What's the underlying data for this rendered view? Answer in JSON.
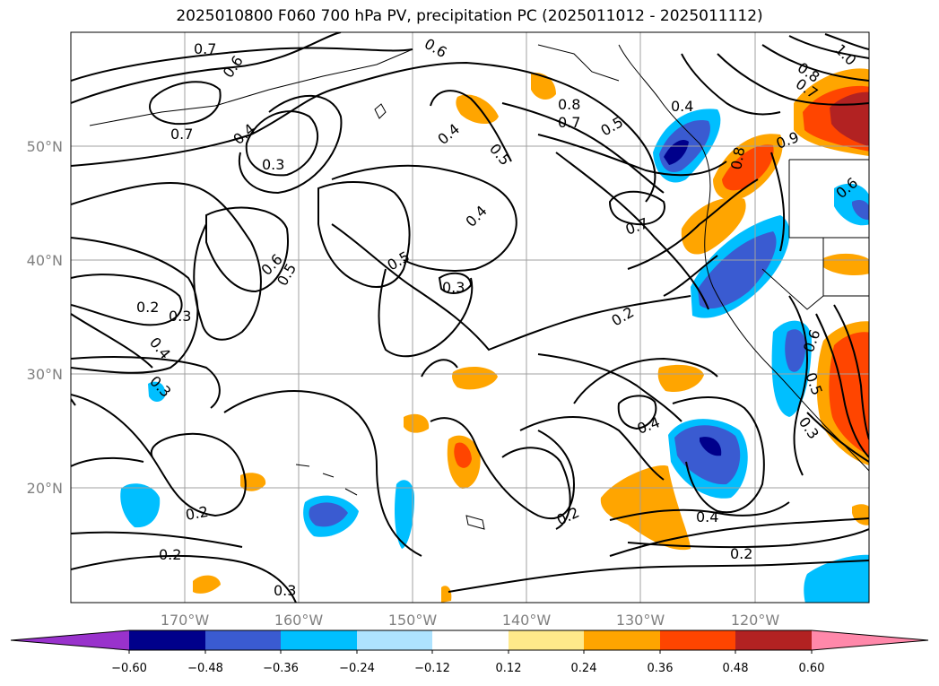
{
  "title": "2025010800 F060 700 hPa PV, precipitation PC (2025011012 - 2025011112)",
  "map": {
    "lon_labels": [
      "170°W",
      "160°W",
      "150°W",
      "140°W",
      "130°W",
      "120°W"
    ],
    "lat_labels": [
      "50°N",
      "40°N",
      "30°N",
      "20°N"
    ],
    "contour_labels": [
      "0.7",
      "0.6",
      "0.6",
      "0.8",
      "0.7",
      "0.5",
      "0.4",
      "0.8",
      "0.7",
      "1.0",
      "0.7",
      "0.4",
      "0.3",
      "0.4",
      "0.5",
      "0.8",
      "0.9",
      "0.6",
      "0.4",
      "0.7",
      "0.6",
      "0.5",
      "0.5",
      "0.3",
      "0.2",
      "0.3",
      "0.4",
      "0.3",
      "0.2",
      "0.4",
      "0.6",
      "0.5",
      "0.3",
      "0.2",
      "0.2",
      "0.3",
      "0.2",
      "0.4",
      "0.2"
    ],
    "colors": {
      "contour": "#000000",
      "gridline": "#a0a0a0",
      "neg_dark": "#00008b",
      "neg_mid": "#3a5bd1",
      "neg_light": "#00bfff",
      "neg_pale": "#aee3ff",
      "pos_pale": "#ffe98a",
      "pos_light": "#ffa500",
      "pos_mid": "#ff4500",
      "pos_dark": "#b22222"
    }
  },
  "colorbar": {
    "ticks": [
      "−0.60",
      "−0.48",
      "−0.36",
      "−0.24",
      "−0.12",
      "0.12",
      "0.24",
      "0.36",
      "0.48",
      "0.60"
    ],
    "colors": [
      "#9932cc",
      "#00008b",
      "#3a5bd1",
      "#00bfff",
      "#aee3ff",
      "#ffffff",
      "#ffe98a",
      "#ffa500",
      "#ff4500",
      "#b22222",
      "#ff88aa"
    ]
  }
}
